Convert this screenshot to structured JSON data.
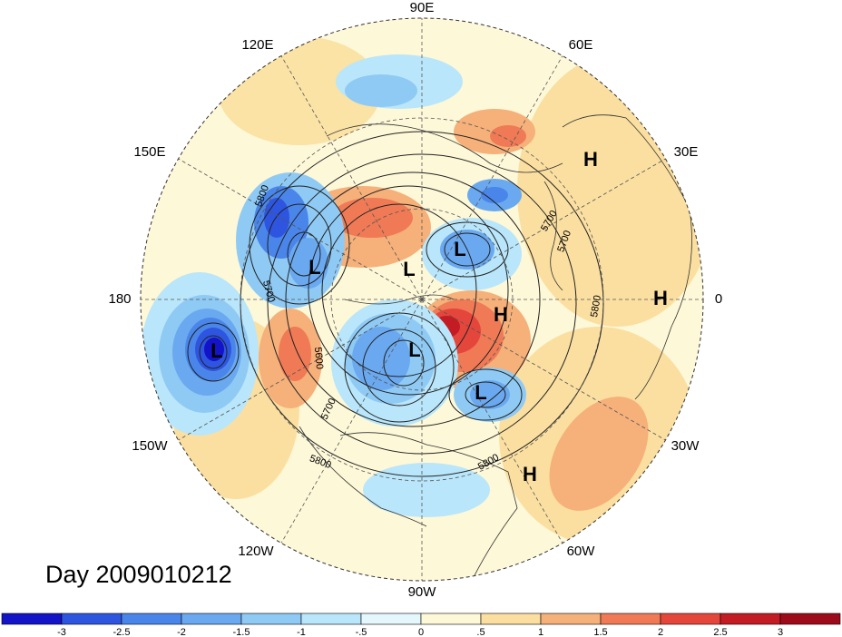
{
  "title": "Day 2009010212",
  "longitude_labels": [
    "90E",
    "60E",
    "30E",
    "0",
    "30W",
    "60W",
    "90W",
    "120W",
    "150W",
    "180",
    "150E",
    "120E"
  ],
  "pressure_labels": [
    {
      "label": "H"
    },
    {
      "label": "H"
    },
    {
      "label": "H"
    },
    {
      "label": "H"
    },
    {
      "label": "L"
    },
    {
      "label": "L"
    },
    {
      "label": "L"
    },
    {
      "label": "L"
    },
    {
      "label": "L"
    },
    {
      "label": "L"
    }
  ],
  "contour_labels": [
    "5800",
    "5700",
    "5600",
    "5700",
    "5800",
    "5800",
    "5800",
    "5700",
    "5700"
  ],
  "colorbar": {
    "ticks": [
      "-3",
      "-2.5",
      "-2",
      "-1.5",
      "-1",
      "-.5",
      "0",
      ".5",
      "1",
      "1.5",
      "2",
      "2.5",
      "3"
    ],
    "colors": [
      "#1313c8",
      "#2e55e0",
      "#4a86ea",
      "#6aa9f0",
      "#8fcaf5",
      "#b9e6fa",
      "#e3f7fc",
      "#fdf8d8",
      "#fbdfa0",
      "#f6b07a",
      "#ef7a55",
      "#e4463c",
      "#c31c24",
      "#9d0b1a"
    ]
  }
}
